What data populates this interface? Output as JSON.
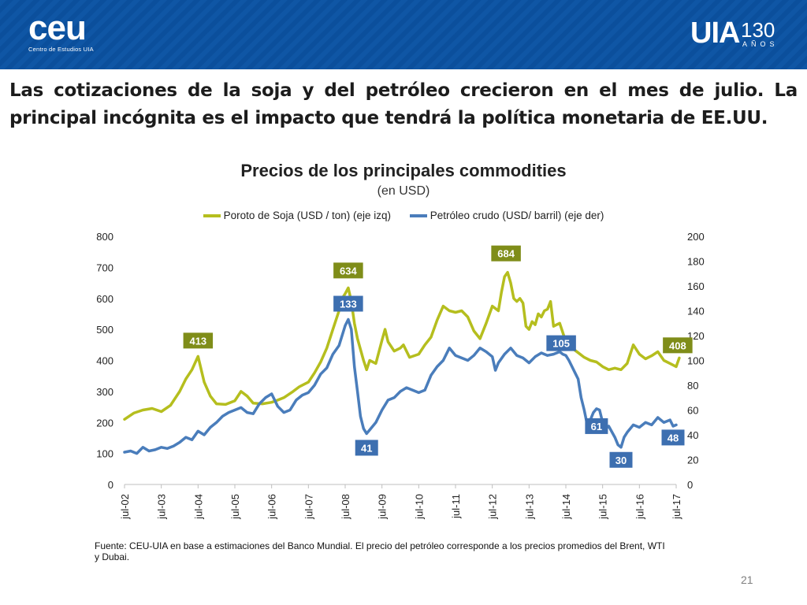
{
  "header": {
    "ceu_logo": "ceu",
    "ceu_tagline": "Centro de Estudios UIA",
    "uia_logo": "UIA",
    "uia_number": "130",
    "uia_years": "AÑOS"
  },
  "slide_title": "Las cotizaciones de la soja y del petróleo crecieron en el mes de julio. La principal incógnita es el impacto que tendrá la política monetaria de EE.UU.",
  "footnote": "Fuente: CEU-UIA en base a estimaciones del Banco Mundial. El precio del petróleo corresponde a los precios promedios del Brent, WTI y Dubai.",
  "page_number": "21",
  "colors": {
    "soja": "#b5be1e",
    "petroleo": "#4a7dbb",
    "soja_label_bg": "#7f8d19",
    "petroleo_label_bg": "#3d6fb0",
    "header_bg": "#0b4f9c"
  },
  "chart_data": {
    "type": "line",
    "title": "Precios de los principales commodities",
    "subtitle": "(en USD)",
    "x_ticks": [
      "jul-02",
      "jul-03",
      "jul-04",
      "jul-05",
      "jul-06",
      "jul-07",
      "jul-08",
      "jul-09",
      "jul-10",
      "jul-11",
      "jul-12",
      "jul-13",
      "jul-14",
      "jul-15",
      "jul-16",
      "jul-17"
    ],
    "y_left": {
      "min": 0,
      "max": 800,
      "step": 100,
      "ticks": [
        "0",
        "100",
        "200",
        "300",
        "400",
        "500",
        "600",
        "700",
        "800"
      ]
    },
    "y_right": {
      "min": 0,
      "max": 200,
      "step": 20,
      "ticks": [
        "0",
        "20",
        "40",
        "60",
        "80",
        "100",
        "120",
        "140",
        "160",
        "180",
        "200"
      ]
    },
    "series": [
      {
        "name": "Poroto de Soja (USD / ton) (eje izq)",
        "axis": "left",
        "color": "#b5be1e",
        "points": [
          [
            0,
            210
          ],
          [
            3,
            230
          ],
          [
            6,
            240
          ],
          [
            9,
            245
          ],
          [
            12,
            235
          ],
          [
            15,
            255
          ],
          [
            18,
            300
          ],
          [
            20,
            340
          ],
          [
            22,
            370
          ],
          [
            24,
            413
          ],
          [
            26,
            330
          ],
          [
            28,
            285
          ],
          [
            30,
            260
          ],
          [
            33,
            258
          ],
          [
            36,
            270
          ],
          [
            38,
            300
          ],
          [
            40,
            285
          ],
          [
            42,
            262
          ],
          [
            45,
            260
          ],
          [
            48,
            265
          ],
          [
            50,
            272
          ],
          [
            52,
            280
          ],
          [
            55,
            300
          ],
          [
            57,
            315
          ],
          [
            60,
            330
          ],
          [
            62,
            360
          ],
          [
            64,
            395
          ],
          [
            66,
            440
          ],
          [
            68,
            500
          ],
          [
            70,
            560
          ],
          [
            71,
            600
          ],
          [
            72,
            615
          ],
          [
            73,
            634
          ],
          [
            74,
            590
          ],
          [
            75,
            520
          ],
          [
            76,
            470
          ],
          [
            78,
            400
          ],
          [
            79,
            370
          ],
          [
            80,
            400
          ],
          [
            82,
            390
          ],
          [
            84,
            465
          ],
          [
            85,
            500
          ],
          [
            86,
            460
          ],
          [
            88,
            430
          ],
          [
            90,
            440
          ],
          [
            91,
            450
          ],
          [
            93,
            410
          ],
          [
            96,
            420
          ],
          [
            98,
            450
          ],
          [
            100,
            475
          ],
          [
            102,
            530
          ],
          [
            104,
            575
          ],
          [
            106,
            560
          ],
          [
            108,
            555
          ],
          [
            110,
            560
          ],
          [
            112,
            540
          ],
          [
            114,
            495
          ],
          [
            116,
            470
          ],
          [
            118,
            520
          ],
          [
            120,
            575
          ],
          [
            122,
            560
          ],
          [
            123,
            620
          ],
          [
            124,
            670
          ],
          [
            125,
            684
          ],
          [
            126,
            650
          ],
          [
            127,
            600
          ],
          [
            128,
            590
          ],
          [
            129,
            600
          ],
          [
            130,
            585
          ],
          [
            131,
            510
          ],
          [
            132,
            500
          ],
          [
            133,
            525
          ],
          [
            134,
            515
          ],
          [
            135,
            550
          ],
          [
            136,
            540
          ],
          [
            137,
            560
          ],
          [
            138,
            565
          ],
          [
            139,
            590
          ],
          [
            140,
            510
          ],
          [
            141,
            515
          ],
          [
            142,
            520
          ],
          [
            143,
            490
          ],
          [
            144,
            460
          ],
          [
            146,
            440
          ],
          [
            148,
            425
          ],
          [
            150,
            410
          ],
          [
            152,
            400
          ],
          [
            154,
            395
          ],
          [
            156,
            380
          ],
          [
            158,
            370
          ],
          [
            160,
            375
          ],
          [
            162,
            370
          ],
          [
            164,
            390
          ],
          [
            166,
            450
          ],
          [
            168,
            420
          ],
          [
            170,
            405
          ],
          [
            172,
            415
          ],
          [
            174,
            428
          ],
          [
            176,
            400
          ],
          [
            178,
            390
          ],
          [
            180,
            380
          ],
          [
            181,
            408
          ]
        ]
      },
      {
        "name": "Petróleo crudo (USD/ barril) (eje der)",
        "axis": "right",
        "color": "#4a7dbb",
        "points": [
          [
            0,
            26
          ],
          [
            2,
            27
          ],
          [
            4,
            25
          ],
          [
            6,
            30
          ],
          [
            8,
            27
          ],
          [
            10,
            28
          ],
          [
            12,
            30
          ],
          [
            14,
            29
          ],
          [
            16,
            31
          ],
          [
            18,
            34
          ],
          [
            20,
            38
          ],
          [
            22,
            36
          ],
          [
            24,
            43
          ],
          [
            26,
            40
          ],
          [
            28,
            46
          ],
          [
            30,
            50
          ],
          [
            32,
            55
          ],
          [
            34,
            58
          ],
          [
            36,
            60
          ],
          [
            38,
            62
          ],
          [
            40,
            58
          ],
          [
            42,
            57
          ],
          [
            44,
            65
          ],
          [
            46,
            70
          ],
          [
            48,
            73
          ],
          [
            50,
            63
          ],
          [
            52,
            58
          ],
          [
            54,
            60
          ],
          [
            56,
            68
          ],
          [
            58,
            72
          ],
          [
            60,
            74
          ],
          [
            62,
            80
          ],
          [
            64,
            89
          ],
          [
            66,
            94
          ],
          [
            68,
            105
          ],
          [
            70,
            112
          ],
          [
            72,
            128
          ],
          [
            73,
            133
          ],
          [
            74,
            125
          ],
          [
            75,
            95
          ],
          [
            76,
            75
          ],
          [
            77,
            55
          ],
          [
            78,
            45
          ],
          [
            79,
            41
          ],
          [
            80,
            44
          ],
          [
            82,
            50
          ],
          [
            84,
            60
          ],
          [
            86,
            68
          ],
          [
            88,
            70
          ],
          [
            90,
            75
          ],
          [
            92,
            78
          ],
          [
            94,
            76
          ],
          [
            96,
            74
          ],
          [
            98,
            76
          ],
          [
            100,
            88
          ],
          [
            102,
            95
          ],
          [
            104,
            100
          ],
          [
            106,
            110
          ],
          [
            108,
            104
          ],
          [
            110,
            102
          ],
          [
            112,
            100
          ],
          [
            114,
            104
          ],
          [
            116,
            110
          ],
          [
            118,
            107
          ],
          [
            120,
            103
          ],
          [
            121,
            92
          ],
          [
            122,
            98
          ],
          [
            124,
            105
          ],
          [
            126,
            110
          ],
          [
            128,
            104
          ],
          [
            130,
            102
          ],
          [
            132,
            98
          ],
          [
            134,
            103
          ],
          [
            136,
            106
          ],
          [
            138,
            104
          ],
          [
            140,
            105
          ],
          [
            142,
            107
          ],
          [
            143,
            105
          ],
          [
            144,
            104
          ],
          [
            145,
            100
          ],
          [
            146,
            95
          ],
          [
            147,
            90
          ],
          [
            148,
            85
          ],
          [
            149,
            70
          ],
          [
            150,
            60
          ],
          [
            151,
            48
          ],
          [
            152,
            52
          ],
          [
            153,
            58
          ],
          [
            154,
            61
          ],
          [
            155,
            60
          ],
          [
            156,
            50
          ],
          [
            157,
            45
          ],
          [
            158,
            47
          ],
          [
            160,
            38
          ],
          [
            161,
            32
          ],
          [
            162,
            30
          ],
          [
            163,
            38
          ],
          [
            164,
            42
          ],
          [
            166,
            48
          ],
          [
            168,
            46
          ],
          [
            170,
            50
          ],
          [
            172,
            48
          ],
          [
            174,
            54
          ],
          [
            176,
            50
          ],
          [
            178,
            52
          ],
          [
            179,
            47
          ],
          [
            180,
            48
          ]
        ]
      }
    ],
    "annotations": [
      {
        "series": 0,
        "x": 24,
        "value": 413,
        "label": "413"
      },
      {
        "series": 0,
        "x": 73,
        "value": 634,
        "label": "634"
      },
      {
        "series": 0,
        "x": 125,
        "value": 684,
        "label": "684"
      },
      {
        "series": 0,
        "x": 181,
        "value": 408,
        "label": "408"
      },
      {
        "series": 1,
        "x": 73,
        "value": 133,
        "label": "133"
      },
      {
        "series": 1,
        "x": 79,
        "value": 41,
        "label": "41"
      },
      {
        "series": 1,
        "x": 143,
        "value": 105,
        "label": "105"
      },
      {
        "series": 1,
        "x": 154,
        "value": 61,
        "label": "61"
      },
      {
        "series": 1,
        "x": 162,
        "value": 30,
        "label": "30"
      },
      {
        "series": 1,
        "x": 180,
        "value": 48,
        "label": "48"
      }
    ],
    "x_range": [
      0,
      180
    ]
  }
}
